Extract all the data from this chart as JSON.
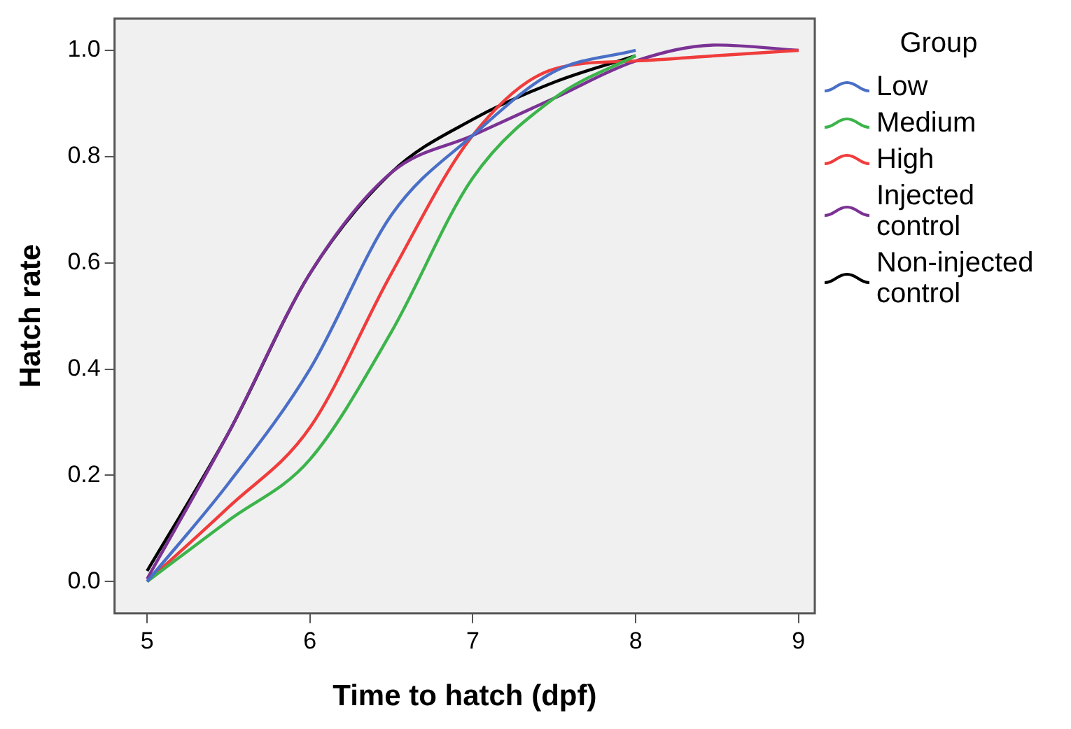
{
  "chart_data": {
    "type": "line",
    "xlabel": "Time to hatch (dpf)",
    "ylabel": "Hatch rate",
    "legend_title": "Group",
    "legend": "right",
    "grid": false,
    "marker": "none",
    "line_style": "solid",
    "x": [
      5,
      5.5,
      6,
      6.5,
      7,
      7.5,
      8,
      8.5,
      9
    ],
    "xlim": [
      4.8,
      9.1
    ],
    "xticks": [
      5,
      6,
      7,
      8,
      9
    ],
    "ylim": [
      -0.06,
      1.06
    ],
    "yticks": [
      {
        "value": 0,
        "label": "0.0"
      },
      {
        "value": 0.2,
        "label": "0.2"
      },
      {
        "value": 0.4,
        "label": "0.4"
      },
      {
        "value": 0.6,
        "label": "0.6"
      },
      {
        "value": 0.8,
        "label": "0.8"
      },
      {
        "value": 1,
        "label": "1.0"
      }
    ],
    "series": [
      {
        "name": "Low",
        "color": "#4a6fc7",
        "values": [
          0,
          0.185,
          0.4,
          0.69,
          0.84,
          0.96,
          1.0,
          null,
          null
        ]
      },
      {
        "name": "Medium",
        "color": "#3cb44b",
        "values": [
          0,
          0.115,
          0.23,
          0.47,
          0.76,
          0.91,
          0.99,
          null,
          null
        ]
      },
      {
        "name": "High",
        "color": "#f03c3c",
        "values": [
          0,
          0.14,
          0.29,
          0.58,
          0.84,
          0.965,
          0.98,
          0.99,
          1.0
        ]
      },
      {
        "name": "Injected control",
        "color": "#7b3294",
        "values": [
          0.005,
          0.28,
          0.58,
          0.77,
          0.84,
          0.91,
          0.98,
          1.01,
          1.0
        ]
      },
      {
        "name": "Non-injected control",
        "color": "#000000",
        "values": [
          0.02,
          0.28,
          0.58,
          0.77,
          0.87,
          0.94,
          0.99,
          null,
          null
        ]
      }
    ]
  }
}
